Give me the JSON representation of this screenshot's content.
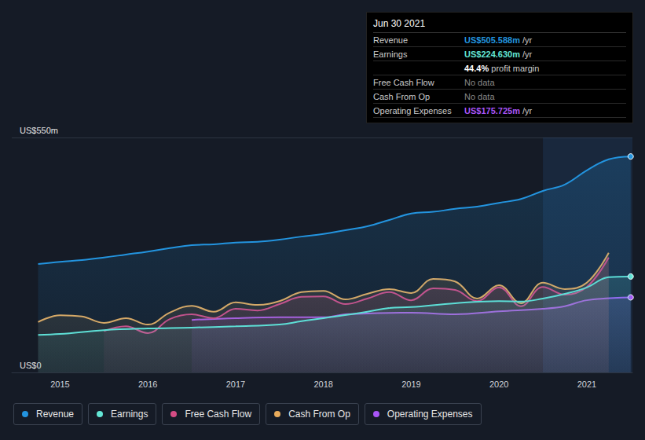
{
  "chart_data": {
    "type": "line",
    "xlim": [
      2014.45,
      2021.52
    ],
    "xticks": [
      2015,
      2016,
      2017,
      2018,
      2019,
      2020,
      2021
    ],
    "ylim": [
      0,
      550
    ],
    "yticks": [
      {
        "value": 0,
        "label": "US$0"
      },
      {
        "value": 550,
        "label": "US$550m"
      }
    ],
    "grid": true,
    "legend": "bottom",
    "highlight": [
      2020.5,
      2021.52
    ],
    "series": [
      {
        "name": "Revenue",
        "color": "#2394df",
        "marker": "end",
        "x": [
          2014.75,
          2015,
          2015.25,
          2015.5,
          2015.75,
          2016,
          2016.25,
          2016.5,
          2016.75,
          2017,
          2017.25,
          2017.5,
          2017.75,
          2018,
          2018.25,
          2018.5,
          2018.75,
          2019,
          2019.25,
          2019.5,
          2019.75,
          2020,
          2020.25,
          2020.5,
          2020.75,
          2021,
          2021.25,
          2021.5
        ],
        "values": [
          254,
          259,
          263,
          269,
          276,
          283,
          291,
          298,
          300,
          304,
          306,
          311,
          318,
          324,
          333,
          342,
          357,
          372,
          376,
          383,
          388,
          397,
          406,
          425,
          440,
          473,
          499,
          505.6
        ]
      },
      {
        "name": "Earnings",
        "color": "#63e6d5",
        "marker": "end",
        "x": [
          2014.75,
          2015,
          2015.5,
          2016,
          2016.5,
          2017,
          2017.5,
          2017.75,
          2018,
          2018.5,
          2018.75,
          2019,
          2019.5,
          2020,
          2020.25,
          2020.5,
          2020.75,
          2021,
          2021.25,
          2021.5
        ],
        "values": [
          88,
          90,
          99,
          103,
          105,
          108,
          112,
          120,
          127,
          142,
          151,
          153,
          162,
          167,
          166,
          173,
          184,
          199,
          223,
          224.6
        ]
      },
      {
        "name": "Free Cash Flow",
        "color": "#d44c84",
        "x": [
          2015.5,
          2015.75,
          2016,
          2016.25,
          2016.5,
          2016.75,
          2017,
          2017.25,
          2017.5,
          2017.75,
          2018,
          2018.25,
          2018.5,
          2018.75,
          2019,
          2019.25,
          2019.5,
          2019.75,
          2020,
          2020.25,
          2020.5,
          2020.75,
          2021,
          2021.25
        ],
        "values": [
          97,
          108,
          92,
          125,
          136,
          127,
          149,
          145,
          160,
          177,
          178,
          160,
          173,
          188,
          169,
          197,
          193,
          167,
          199,
          155,
          200,
          182,
          200,
          269
        ]
      },
      {
        "name": "Cash From Op",
        "color": "#e8ab5b",
        "x": [
          2014.75,
          2015,
          2015.25,
          2015.5,
          2015.75,
          2016,
          2016.25,
          2016.5,
          2016.75,
          2017,
          2017.25,
          2017.5,
          2017.75,
          2018,
          2018.25,
          2018.5,
          2018.75,
          2019,
          2019.25,
          2019.5,
          2019.75,
          2020,
          2020.25,
          2020.5,
          2020.75,
          2021,
          2021.25
        ],
        "values": [
          118,
          134,
          131,
          116,
          127,
          112,
          140,
          156,
          142,
          164,
          158,
          167,
          188,
          191,
          171,
          184,
          195,
          186,
          219,
          213,
          173,
          204,
          162,
          210,
          195,
          210,
          280
        ]
      },
      {
        "name": "Operating Expenses",
        "color": "#a855f7",
        "marker": "end",
        "x": [
          2016.5,
          2017,
          2017.5,
          2018,
          2018.25,
          2018.5,
          2019,
          2019.5,
          2020,
          2020.5,
          2020.75,
          2021,
          2021.5
        ],
        "values": [
          123,
          127,
          129,
          129,
          136,
          138,
          140,
          136,
          143,
          149,
          155,
          169,
          175.7
        ]
      }
    ],
    "tooltip": {
      "title": "Jun 30 2021",
      "rows": [
        {
          "label": "Revenue",
          "value": "US$505.588m",
          "unit": "/yr",
          "color": "#2394df"
        },
        {
          "label": "Earnings",
          "value": "US$224.630m",
          "unit": "/yr",
          "color": "#63e6d5"
        },
        {
          "value": "44.4%",
          "unit": "profit margin",
          "color": "#ffffff"
        },
        {
          "label": "Free Cash Flow",
          "value": "No data",
          "color": "#888888"
        },
        {
          "label": "Cash From Op",
          "value": "No data",
          "color": "#888888"
        },
        {
          "label": "Operating Expenses",
          "value": "US$175.725m",
          "unit": "/yr",
          "color": "#a855f7"
        }
      ]
    }
  }
}
